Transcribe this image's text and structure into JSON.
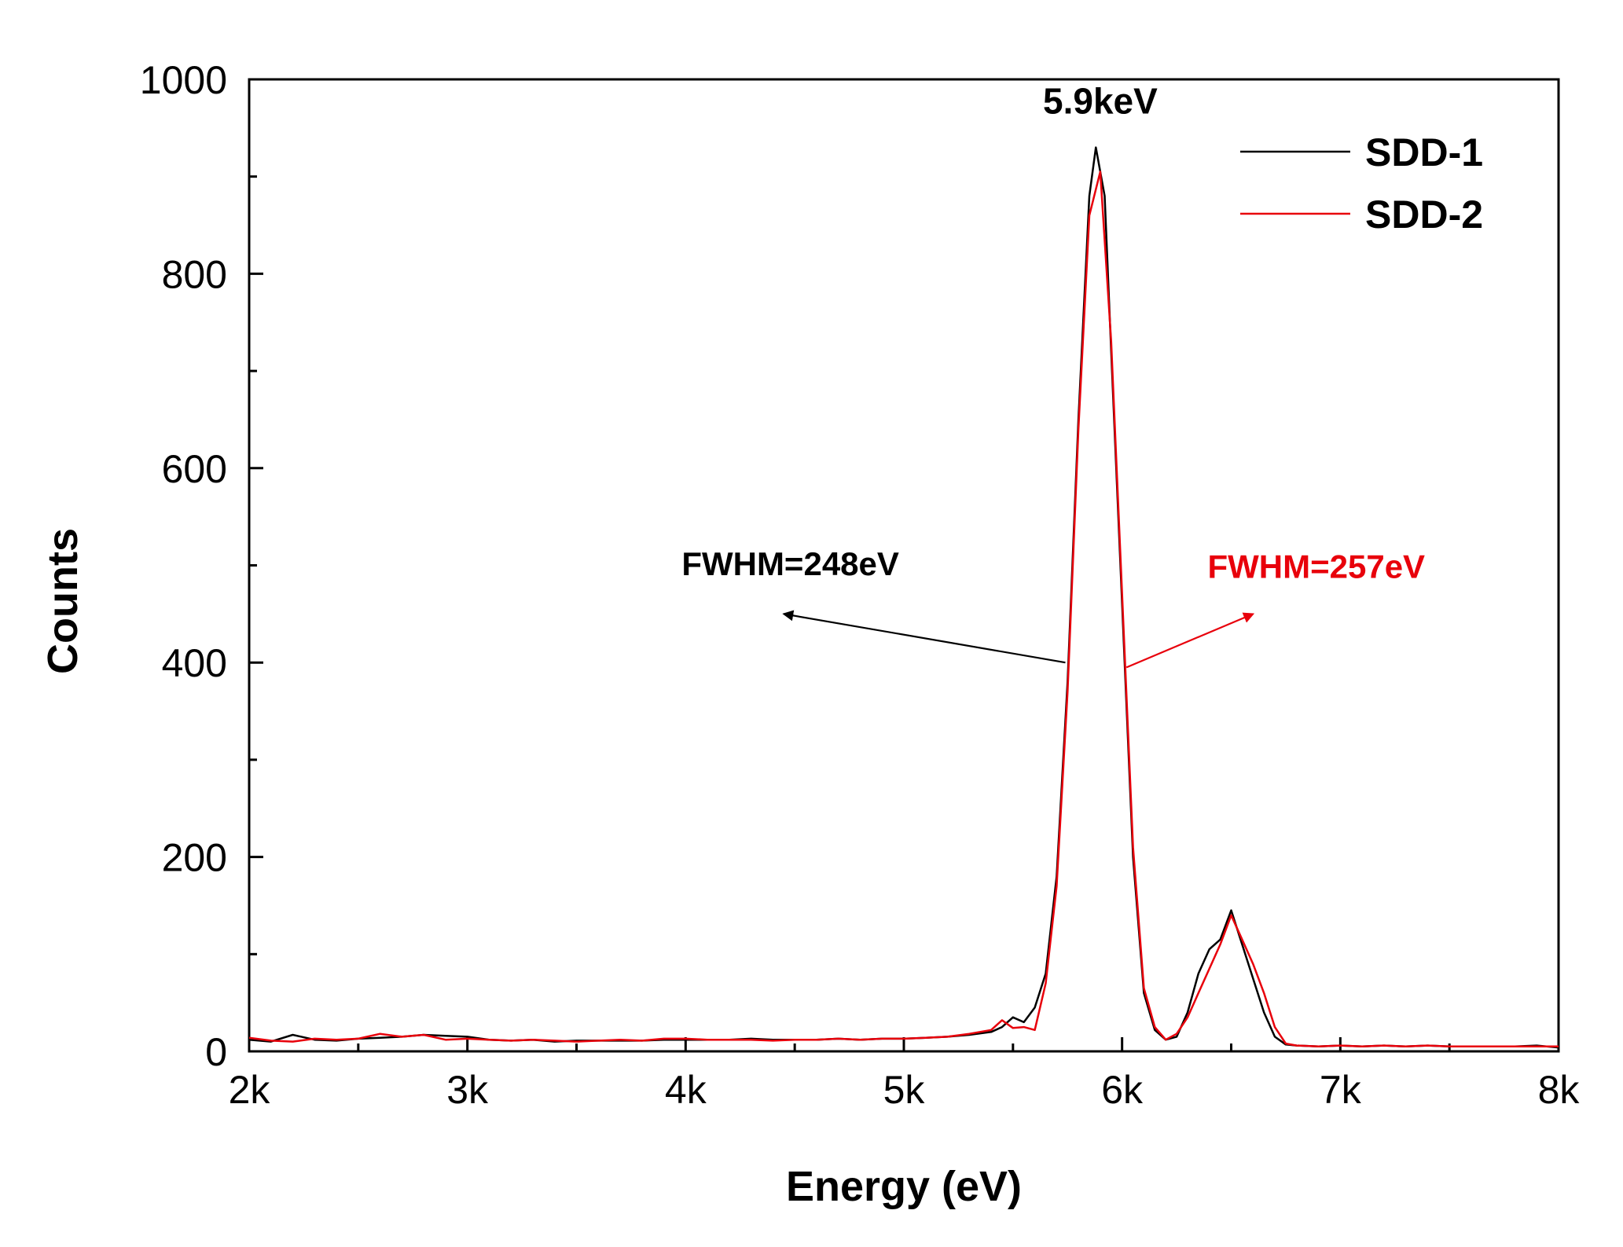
{
  "chart_data": {
    "type": "line",
    "xlabel": "Energy (eV)",
    "ylabel": "Counts",
    "xlim": [
      2000,
      8000
    ],
    "ylim": [
      0,
      1000
    ],
    "x_ticks": [
      {
        "value": 2000,
        "label": "2k"
      },
      {
        "value": 3000,
        "label": "3k"
      },
      {
        "value": 4000,
        "label": "4k"
      },
      {
        "value": 5000,
        "label": "5k"
      },
      {
        "value": 6000,
        "label": "6k"
      },
      {
        "value": 7000,
        "label": "7k"
      },
      {
        "value": 8000,
        "label": "8k"
      }
    ],
    "y_ticks": [
      {
        "value": 0,
        "label": "0"
      },
      {
        "value": 200,
        "label": "200"
      },
      {
        "value": 400,
        "label": "400"
      },
      {
        "value": 600,
        "label": "600"
      },
      {
        "value": 800,
        "label": "800"
      },
      {
        "value": 1000,
        "label": "1000"
      }
    ],
    "legend_position": "top-right",
    "series": [
      {
        "name": "SDD-1",
        "color": "#000000",
        "points": [
          [
            2000,
            12
          ],
          [
            2100,
            10
          ],
          [
            2200,
            17
          ],
          [
            2300,
            12
          ],
          [
            2400,
            11
          ],
          [
            2500,
            13
          ],
          [
            2600,
            14
          ],
          [
            2700,
            15
          ],
          [
            2800,
            17
          ],
          [
            2900,
            16
          ],
          [
            3000,
            15
          ],
          [
            3100,
            12
          ],
          [
            3200,
            11
          ],
          [
            3300,
            12
          ],
          [
            3400,
            10
          ],
          [
            3500,
            11
          ],
          [
            3600,
            11
          ],
          [
            3700,
            11
          ],
          [
            3800,
            11
          ],
          [
            3900,
            12
          ],
          [
            4000,
            12
          ],
          [
            4100,
            12
          ],
          [
            4200,
            12
          ],
          [
            4300,
            13
          ],
          [
            4400,
            12
          ],
          [
            4500,
            12
          ],
          [
            4600,
            12
          ],
          [
            4700,
            13
          ],
          [
            4800,
            12
          ],
          [
            4900,
            13
          ],
          [
            5000,
            13
          ],
          [
            5100,
            14
          ],
          [
            5200,
            15
          ],
          [
            5300,
            17
          ],
          [
            5400,
            20
          ],
          [
            5450,
            25
          ],
          [
            5500,
            35
          ],
          [
            5550,
            30
          ],
          [
            5600,
            45
          ],
          [
            5650,
            80
          ],
          [
            5700,
            180
          ],
          [
            5750,
            380
          ],
          [
            5800,
            650
          ],
          [
            5850,
            880
          ],
          [
            5880,
            930
          ],
          [
            5920,
            880
          ],
          [
            5950,
            720
          ],
          [
            6000,
            460
          ],
          [
            6050,
            200
          ],
          [
            6100,
            60
          ],
          [
            6150,
            22
          ],
          [
            6200,
            12
          ],
          [
            6250,
            15
          ],
          [
            6300,
            40
          ],
          [
            6350,
            80
          ],
          [
            6400,
            105
          ],
          [
            6450,
            115
          ],
          [
            6500,
            145
          ],
          [
            6550,
            110
          ],
          [
            6600,
            75
          ],
          [
            6650,
            40
          ],
          [
            6700,
            15
          ],
          [
            6750,
            7
          ],
          [
            6800,
            6
          ],
          [
            6900,
            5
          ],
          [
            7000,
            6
          ],
          [
            7100,
            5
          ],
          [
            7200,
            6
          ],
          [
            7300,
            5
          ],
          [
            7400,
            6
          ],
          [
            7500,
            5
          ],
          [
            7600,
            5
          ],
          [
            7700,
            5
          ],
          [
            7800,
            5
          ],
          [
            7900,
            6
          ],
          [
            8000,
            4
          ]
        ]
      },
      {
        "name": "SDD-2",
        "color": "#e8000b",
        "points": [
          [
            2000,
            14
          ],
          [
            2100,
            11
          ],
          [
            2200,
            10
          ],
          [
            2300,
            13
          ],
          [
            2400,
            12
          ],
          [
            2500,
            13
          ],
          [
            2600,
            18
          ],
          [
            2700,
            15
          ],
          [
            2800,
            17
          ],
          [
            2900,
            12
          ],
          [
            3000,
            13
          ],
          [
            3100,
            12
          ],
          [
            3200,
            11
          ],
          [
            3300,
            12
          ],
          [
            3400,
            11
          ],
          [
            3500,
            10
          ],
          [
            3600,
            11
          ],
          [
            3700,
            12
          ],
          [
            3800,
            11
          ],
          [
            3900,
            13
          ],
          [
            4000,
            13
          ],
          [
            4100,
            12
          ],
          [
            4200,
            12
          ],
          [
            4300,
            12
          ],
          [
            4400,
            11
          ],
          [
            4500,
            12
          ],
          [
            4600,
            12
          ],
          [
            4700,
            13
          ],
          [
            4800,
            12
          ],
          [
            4900,
            13
          ],
          [
            5000,
            13
          ],
          [
            5100,
            14
          ],
          [
            5200,
            15
          ],
          [
            5300,
            18
          ],
          [
            5400,
            22
          ],
          [
            5450,
            32
          ],
          [
            5500,
            24
          ],
          [
            5550,
            25
          ],
          [
            5600,
            22
          ],
          [
            5650,
            70
          ],
          [
            5700,
            170
          ],
          [
            5750,
            370
          ],
          [
            5800,
            640
          ],
          [
            5850,
            860
          ],
          [
            5900,
            905
          ],
          [
            5950,
            730
          ],
          [
            6000,
            470
          ],
          [
            6050,
            210
          ],
          [
            6100,
            65
          ],
          [
            6150,
            25
          ],
          [
            6200,
            12
          ],
          [
            6250,
            18
          ],
          [
            6300,
            35
          ],
          [
            6350,
            60
          ],
          [
            6400,
            85
          ],
          [
            6450,
            110
          ],
          [
            6500,
            140
          ],
          [
            6550,
            115
          ],
          [
            6600,
            90
          ],
          [
            6650,
            60
          ],
          [
            6700,
            25
          ],
          [
            6750,
            8
          ],
          [
            6800,
            6
          ],
          [
            6900,
            5
          ],
          [
            7000,
            6
          ],
          [
            7100,
            5
          ],
          [
            7200,
            6
          ],
          [
            7300,
            5
          ],
          [
            7400,
            6
          ],
          [
            7500,
            5
          ],
          [
            7600,
            5
          ],
          [
            7700,
            5
          ],
          [
            7800,
            5
          ],
          [
            7900,
            5
          ],
          [
            8000,
            5
          ]
        ]
      }
    ],
    "annotations": [
      {
        "text": "5.9keV",
        "x": 5900,
        "y": 965,
        "color": "#000000"
      },
      {
        "text": "FWHM=248eV",
        "x": 4480,
        "y": 490,
        "color": "#000000",
        "arrow_from": [
          5740,
          400
        ],
        "arrow_to": [
          4450,
          450
        ]
      },
      {
        "text": "FWHM=257eV",
        "x": 6890,
        "y": 487,
        "color": "#e8000b",
        "arrow_from": [
          6020,
          395
        ],
        "arrow_to": [
          6600,
          450
        ]
      }
    ]
  }
}
